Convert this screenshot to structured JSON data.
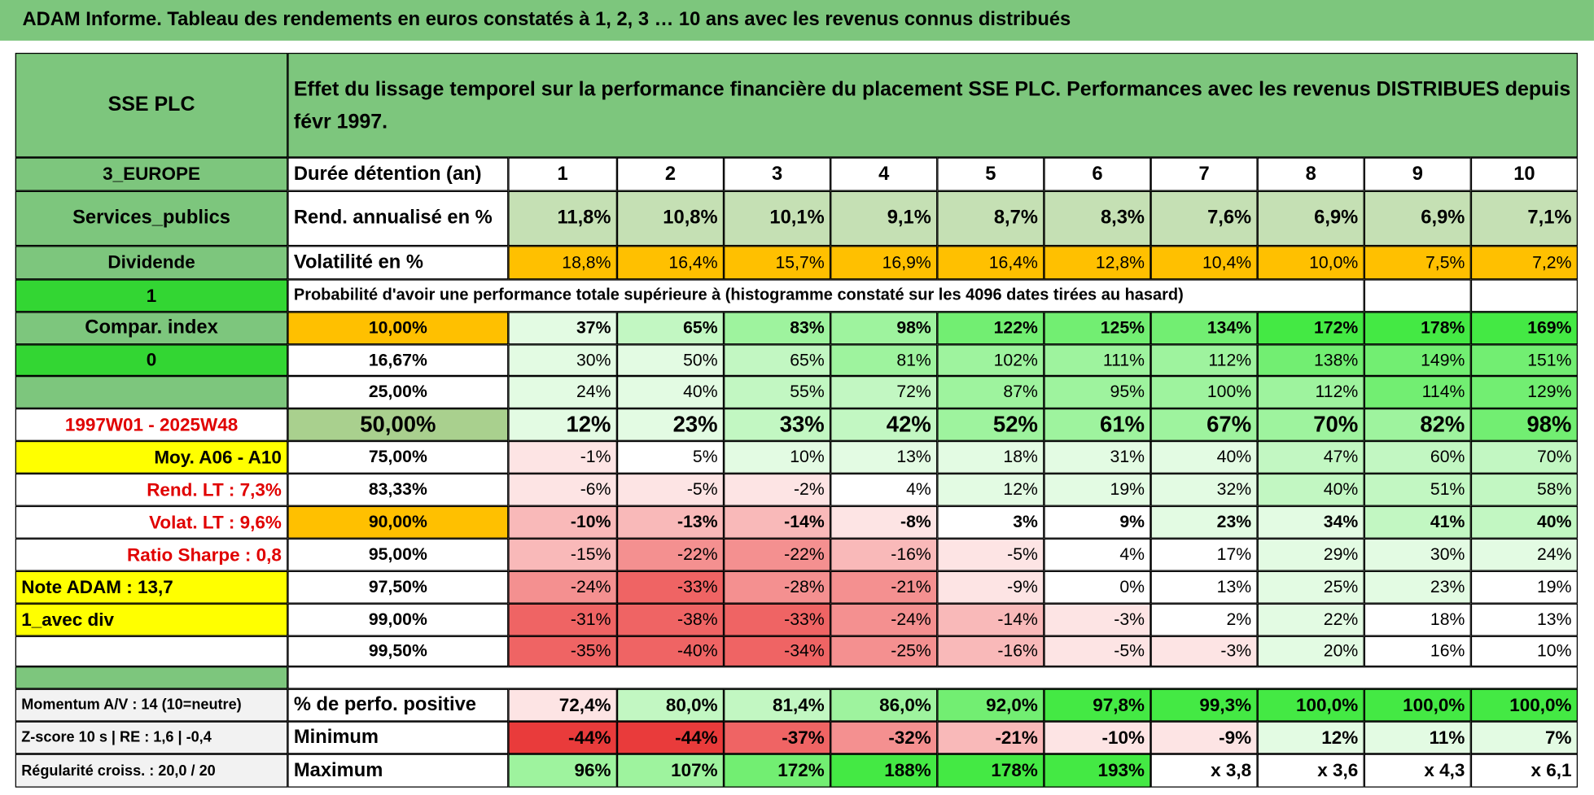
{
  "title": "ADAM Informe. Tableau des rendements en euros constatés à 1, 2, 3 … 10 ans avec les revenus connus distribués",
  "header": {
    "name": "SSE PLC",
    "description": "Effet du lissage temporel sur la performance financière du placement SSE PLC. Performances avec les revenus DISTRIBUES depuis févr 1997."
  },
  "table": {
    "rows": [
      [
        "3_EUROPE",
        "Durée détention (an)",
        "1",
        "2",
        "3",
        "4",
        "5",
        "6",
        "7",
        "8",
        "9",
        "10"
      ],
      [
        "Services_publics",
        "Rend. annualisé en %",
        "11,8%",
        "10,8%",
        "10,1%",
        "9,1%",
        "8,7%",
        "8,3%",
        "7,6%",
        "6,9%",
        "6,9%",
        "7,1%"
      ],
      [
        "Dividende",
        "Volatilité en %",
        "18,8%",
        "16,4%",
        "15,7%",
        "16,9%",
        "16,4%",
        "12,8%",
        "10,4%",
        "10,0%",
        "7,5%",
        "7,2%"
      ],
      [
        "1",
        "Probabilité d'avoir une performance totale supérieure à (histogramme constaté sur les 4096 dates tirées au hasard)"
      ],
      [
        "Compar. index",
        "10,00%",
        "37%",
        "65%",
        "83%",
        "98%",
        "122%",
        "125%",
        "134%",
        "172%",
        "178%",
        "169%"
      ],
      [
        "0",
        "16,67%",
        "30%",
        "50%",
        "65%",
        "81%",
        "102%",
        "111%",
        "112%",
        "138%",
        "149%",
        "151%"
      ],
      [
        null,
        "25,00%",
        "24%",
        "40%",
        "55%",
        "72%",
        "87%",
        "95%",
        "100%",
        "112%",
        "114%",
        "129%"
      ],
      [
        "1997W01 - 2025W48",
        "50,00%",
        "12%",
        "23%",
        "33%",
        "42%",
        "52%",
        "61%",
        "67%",
        "70%",
        "82%",
        "98%"
      ],
      [
        "Moy. A06 - A10",
        "75,00%",
        "-1%",
        "5%",
        "10%",
        "13%",
        "18%",
        "31%",
        "40%",
        "47%",
        "60%",
        "70%"
      ],
      [
        "Rend. LT :   7,3%",
        "83,33%",
        "-6%",
        "-5%",
        "-2%",
        "4%",
        "12%",
        "19%",
        "32%",
        "40%",
        "51%",
        "58%"
      ],
      [
        "Volat. LT :   9,6%",
        "90,00%",
        "-10%",
        "-13%",
        "-14%",
        "-8%",
        "3%",
        "9%",
        "23%",
        "34%",
        "41%",
        "40%"
      ],
      [
        "Ratio Sharpe :    0,8",
        "95,00%",
        "-15%",
        "-22%",
        "-22%",
        "-16%",
        "-5%",
        "4%",
        "17%",
        "29%",
        "30%",
        "24%"
      ],
      [
        "Note ADAM : 13,7",
        "97,50%",
        "-24%",
        "-33%",
        "-28%",
        "-21%",
        "-9%",
        "0%",
        "13%",
        "25%",
        "23%",
        "19%"
      ],
      [
        "1_avec div",
        "99,00%",
        "-31%",
        "-38%",
        "-33%",
        "-24%",
        "-14%",
        "-3%",
        "2%",
        "22%",
        "18%",
        "13%"
      ],
      [
        null,
        "99,50%",
        "-35%",
        "-40%",
        "-34%",
        "-25%",
        "-16%",
        "-5%",
        "-3%",
        "20%",
        "16%",
        "10%"
      ]
    ]
  },
  "summary": {
    "rows": [
      [
        "Momentum A/V : 14 (10=neutre)",
        "% de perfo. positive",
        "72,4%",
        "80,0%",
        "81,4%",
        "86,0%",
        "92,0%",
        "97,8%",
        "99,3%",
        "100,0%",
        "100,0%",
        "100,0%"
      ],
      [
        "Z-score 10 s | RE : 1,6 | -0,4",
        "Minimum",
        "-44%",
        "-44%",
        "-37%",
        "-32%",
        "-21%",
        "-10%",
        "-9%",
        "12%",
        "11%",
        "7%"
      ],
      [
        "Régularité croiss. : 20,0 / 20",
        "Maximum",
        "96%",
        "107%",
        "172%",
        "188%",
        "178%",
        "193%",
        "x 3,8",
        "x 3,6",
        "x 4,3",
        "x 6,1"
      ]
    ]
  }
}
